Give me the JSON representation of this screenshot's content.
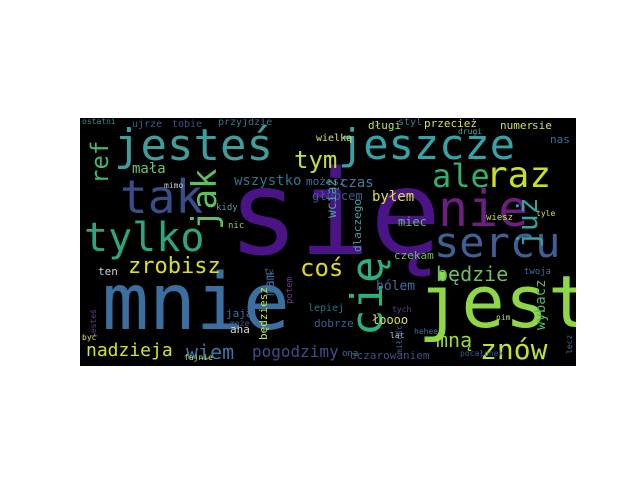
{
  "words": [
    {
      "text": "się",
      "color": "#4a1486"
    },
    {
      "text": "mnie",
      "color": "#3b6fa0"
    },
    {
      "text": "jest",
      "color": "#8fd744"
    },
    {
      "text": "jesteś",
      "color": "#3f9d9b"
    },
    {
      "text": "jeszcze",
      "color": "#33a5a8"
    },
    {
      "text": "tak",
      "color": "#3a4d8a"
    },
    {
      "text": "tylko",
      "color": "#2ea67d"
    },
    {
      "text": "nie",
      "color": "#6b1f7f"
    },
    {
      "text": "sercu",
      "color": "#3f5f95"
    },
    {
      "text": "raz",
      "color": "#c8e020"
    },
    {
      "text": "ale",
      "color": "#33b06c"
    },
    {
      "text": "jak",
      "color": "#5fc060"
    },
    {
      "text": "już",
      "color": "#31a6a0"
    },
    {
      "text": "cię",
      "color": "#2bb07f"
    },
    {
      "text": "znów",
      "color": "#bfe335"
    },
    {
      "text": "ref",
      "color": "#40b870"
    },
    {
      "text": "tym",
      "color": "#c0e040"
    },
    {
      "text": "zrobisz",
      "color": "#d7e219"
    },
    {
      "text": "coś",
      "color": "#ded82a"
    },
    {
      "text": "będzie",
      "color": "#6dbf60"
    },
    {
      "text": "nadzieja",
      "color": "#d4e22a"
    },
    {
      "text": "mną",
      "color": "#9dd93b"
    },
    {
      "text": "wiem",
      "color": "#3b74a0"
    },
    {
      "text": "pogodzimy",
      "color": "#3f4e8a"
    },
    {
      "text": "mała",
      "color": "#6dc66a"
    },
    {
      "text": "wszystko",
      "color": "#2a788e"
    },
    {
      "text": "czas",
      "color": "#4a7aa0"
    },
    {
      "text": "byłem",
      "color": "#d9e23a"
    },
    {
      "text": "wybacz",
      "color": "#4eb86a"
    },
    {
      "text": "bólem",
      "color": "#3c6fa0"
    },
    {
      "text": "głupcem",
      "color": "#3a5a90"
    },
    {
      "text": "możesz",
      "color": "#3f6f9a"
    },
    {
      "text": "wciąż",
      "color": "#46a89a"
    },
    {
      "text": "miec",
      "color": "#5ab67a"
    },
    {
      "text": "dlaczego",
      "color": "#4aa0a0"
    },
    {
      "text": "czekam",
      "color": "#6cbd58"
    },
    {
      "text": "mam",
      "color": "#3b6fa0"
    },
    {
      "text": "będziesz",
      "color": "#c3e14a"
    },
    {
      "text": "potem",
      "color": "#6a3f8a"
    },
    {
      "text": "dobrze",
      "color": "#3f5f90"
    },
    {
      "text": "lepiej",
      "color": "#2a788e"
    },
    {
      "text": "łoooo",
      "color": "#d8e24a"
    },
    {
      "text": "oczarowaniem",
      "color": "#3f4e8a"
    },
    {
      "text": "ona",
      "color": "#2a788e"
    },
    {
      "text": "aha",
      "color": "#d8d8d0"
    },
    {
      "text": "jaja",
      "color": "#3f6fa0"
    },
    {
      "text": "może",
      "color": "#3b5a8a"
    },
    {
      "text": "ten",
      "color": "#c8d2d8"
    },
    {
      "text": "wielką",
      "color": "#d4e26a"
    },
    {
      "text": "długi",
      "color": "#bfe24a"
    },
    {
      "text": "styl",
      "color": "#3f7a9a"
    },
    {
      "text": "przecież",
      "color": "#d7e24a"
    },
    {
      "text": "numer",
      "color": "#c8e05a"
    },
    {
      "text": "sie",
      "color": "#d0e060"
    },
    {
      "text": "nas",
      "color": "#3f6f9a"
    },
    {
      "text": "ujrze",
      "color": "#3f5f90"
    },
    {
      "text": "tobie",
      "color": "#3f4e8a"
    },
    {
      "text": "przyjdzie",
      "color": "#2a7a8e"
    },
    {
      "text": "kidy",
      "color": "#4aa0a0"
    },
    {
      "text": "nic",
      "color": "#8fd744"
    },
    {
      "text": "wiesz",
      "color": "#bfe24a"
    },
    {
      "text": "twoja",
      "color": "#3f6f9a"
    },
    {
      "text": "drugi",
      "color": "#4aa8a0"
    },
    {
      "text": "hehee",
      "color": "#3b6fa0"
    },
    {
      "text": "pocałunek",
      "color": "#3f5f90"
    },
    {
      "text": "fajnie",
      "color": "#c0e070"
    },
    {
      "text": "ostatni",
      "color": "#3f8a9a"
    },
    {
      "text": "jesteś",
      "color": "#6a3f8a"
    },
    {
      "text": "być",
      "color": "#d0e070"
    },
    {
      "text": "mimo",
      "color": "#c0d8d0"
    },
    {
      "text": "ty",
      "color": "#3f6f9a"
    },
    {
      "text": "tyle",
      "color": "#d0e070"
    },
    {
      "text": "nim",
      "color": "#b0d880"
    },
    {
      "text": "lat",
      "color": "#c8d0d8"
    },
    {
      "text": "tych",
      "color": "#6a3f8a"
    },
    {
      "text": "lecz",
      "color": "#3f6f9a"
    },
    {
      "text": "miłości",
      "color": "#3f5f90"
    }
  ]
}
